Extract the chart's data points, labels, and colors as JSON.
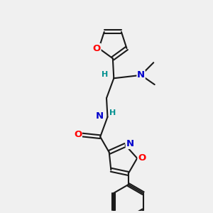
{
  "bg_color": "#f0f0f0",
  "bond_color": "#1a1a1a",
  "bond_width": 1.5,
  "atom_colors": {
    "O": "#ff0000",
    "N": "#0000cc",
    "H_teal": "#009090",
    "C": "#1a1a1a"
  },
  "font_size_atom": 9.5,
  "font_size_H": 8.0,
  "font_size_me": 8.5
}
